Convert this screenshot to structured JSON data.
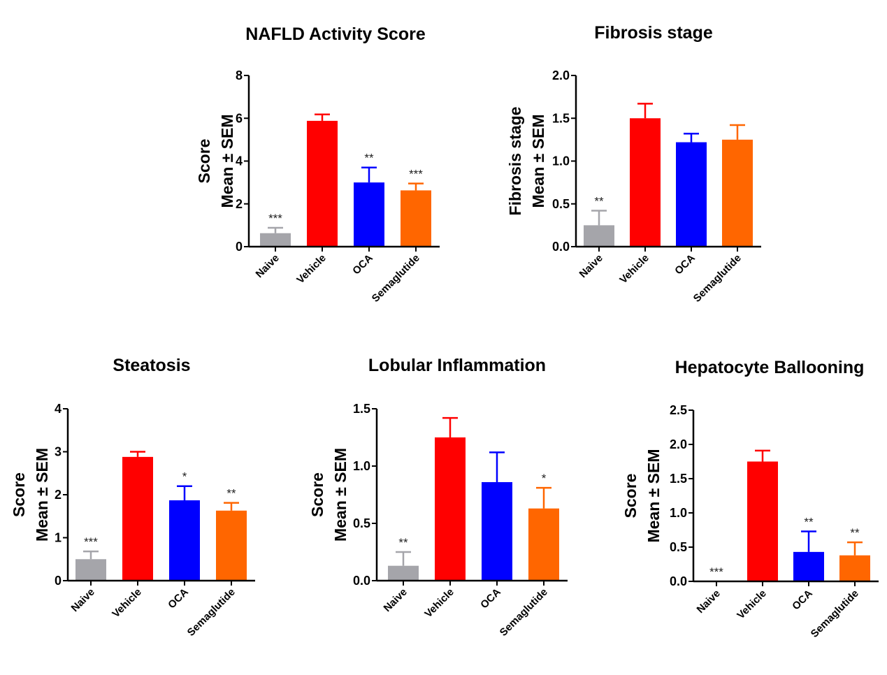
{
  "chart_data": [
    {
      "type": "bar",
      "title": "NAFLD Activity Score",
      "ylabel_lines": [
        "Score",
        "Mean ± SEM"
      ],
      "categories": [
        "Naive",
        "Vehicle",
        "OCA",
        "Semaglutide"
      ],
      "values": [
        0.63,
        5.88,
        3.0,
        2.63
      ],
      "errors": [
        0.25,
        0.3,
        0.7,
        0.32
      ],
      "significance": [
        "***",
        "",
        "**",
        "***"
      ],
      "ylim": [
        0,
        8
      ],
      "yticks": [
        "0",
        "2",
        "4",
        "6",
        "8"
      ],
      "ytick_values": [
        0,
        2,
        4,
        6,
        8
      ]
    },
    {
      "type": "bar",
      "title": "Fibrosis stage",
      "ylabel_lines": [
        "Fibrosis stage",
        "Mean ± SEM"
      ],
      "categories": [
        "Naive",
        "Vehicle",
        "OCA",
        "Semaglutide"
      ],
      "values": [
        0.25,
        1.5,
        1.22,
        1.25
      ],
      "errors": [
        0.17,
        0.17,
        0.1,
        0.17
      ],
      "significance": [
        "**",
        "",
        "",
        ""
      ],
      "ylim": [
        0,
        2
      ],
      "yticks": [
        "0.0",
        "0.5",
        "1.0",
        "1.5",
        "2.0"
      ],
      "ytick_values": [
        0,
        0.5,
        1.0,
        1.5,
        2.0
      ]
    },
    {
      "type": "bar",
      "title": "Steatosis",
      "ylabel_lines": [
        "Score",
        "Mean ± SEM"
      ],
      "categories": [
        "Naive",
        "Vehicle",
        "OCA",
        "Semaglutide"
      ],
      "values": [
        0.5,
        2.88,
        1.87,
        1.63
      ],
      "errors": [
        0.18,
        0.12,
        0.33,
        0.18
      ],
      "significance": [
        "***",
        "",
        "*",
        "**"
      ],
      "ylim": [
        0,
        4
      ],
      "yticks": [
        "0",
        "1",
        "2",
        "3",
        "4"
      ],
      "ytick_values": [
        0,
        1,
        2,
        3,
        4
      ]
    },
    {
      "type": "bar",
      "title": "Lobular Inflammation",
      "ylabel_lines": [
        "Score",
        "Mean ± SEM"
      ],
      "categories": [
        "Naive",
        "Vehicle",
        "OCA",
        "Semaglutide"
      ],
      "values": [
        0.13,
        1.25,
        0.86,
        0.63
      ],
      "errors": [
        0.12,
        0.17,
        0.26,
        0.18
      ],
      "significance": [
        "**",
        "",
        "",
        "*"
      ],
      "ylim": [
        0,
        1.5
      ],
      "yticks": [
        "0.0",
        "0.5",
        "1.0",
        "1.5"
      ],
      "ytick_values": [
        0,
        0.5,
        1.0,
        1.5
      ]
    },
    {
      "type": "bar",
      "title": "Hepatocyte Ballooning",
      "ylabel_lines": [
        "Score",
        "Mean ± SEM"
      ],
      "categories": [
        "Naive",
        "Vehicle",
        "OCA",
        "Semaglutide"
      ],
      "values": [
        0.0,
        1.75,
        0.43,
        0.38
      ],
      "errors": [
        0.0,
        0.16,
        0.3,
        0.19
      ],
      "significance": [
        "***",
        "",
        "**",
        "**"
      ],
      "ylim": [
        0,
        2.5
      ],
      "yticks": [
        "0.0",
        "0.5",
        "1.0",
        "1.5",
        "2.0",
        "2.5"
      ],
      "ytick_values": [
        0,
        0.5,
        1.0,
        1.5,
        2.0,
        2.5
      ]
    }
  ],
  "colors": {
    "Naive": "#a5a5aa",
    "Vehicle": "#ff0000",
    "OCA": "#0000ff",
    "Semaglutide": "#ff6600"
  }
}
